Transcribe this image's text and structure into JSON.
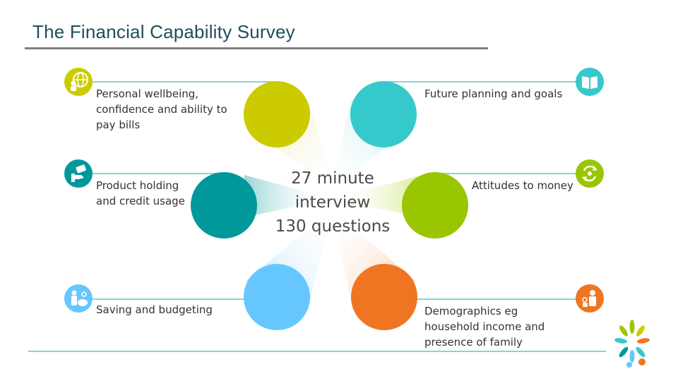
{
  "slide": {
    "title": "The Financial Capability Survey"
  },
  "center": {
    "line1": "27 minute",
    "line2": "interview",
    "line3": "130 questions"
  },
  "topics": [
    {
      "label": "Personal wellbeing, confidence and ability to pay bills",
      "color": "#cbcb00",
      "icon": "globe-person-icon"
    },
    {
      "label": "Future planning and goals",
      "color": "#36c9cc",
      "icon": "open-book-icon"
    },
    {
      "label": "Product holding and credit usage",
      "color": "#00989a",
      "icon": "hand-card-icon"
    },
    {
      "label": "Attitudes to money",
      "color": "#99c600",
      "icon": "cycle-arrows-icon"
    },
    {
      "label": "Saving and budgeting",
      "color": "#66c7ff",
      "icon": "person-piggybank-icon"
    },
    {
      "label": "Demographics eg household income and presence of family",
      "color": "#f07523",
      "icon": "family-icon"
    }
  ],
  "colors": {
    "title": "#1f4e5a",
    "line": "#8fd0d6"
  }
}
